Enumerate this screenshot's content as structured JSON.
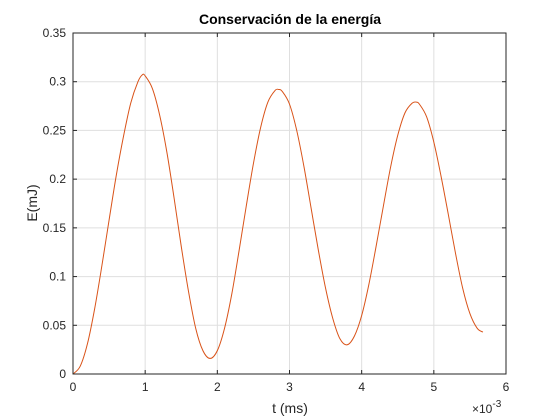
{
  "chart_data": {
    "type": "line",
    "title": "Conservación de la energía",
    "xlabel": "t (ms)",
    "ylabel": "E(mJ)",
    "x_multiplier_label": "×10",
    "x_multiplier_exponent": "-3",
    "xlim": [
      0,
      6
    ],
    "ylim": [
      0,
      0.35
    ],
    "grid": true,
    "legend": "none",
    "x_ticks": [
      0,
      1,
      2,
      3,
      4,
      5,
      6
    ],
    "x_tick_labels": [
      "0",
      "1",
      "2",
      "3",
      "4",
      "5",
      "6"
    ],
    "y_ticks": [
      0,
      0.05,
      0.1,
      0.15,
      0.2,
      0.25,
      0.3,
      0.35
    ],
    "y_tick_labels": [
      "0",
      "0.05",
      "0.1",
      "0.15",
      "0.2",
      "0.25",
      "0.3",
      "0.35"
    ],
    "series": [
      {
        "color": "#d95319",
        "x": [
          0,
          0.1,
          0.2,
          0.3,
          0.4,
          0.5,
          0.6,
          0.7,
          0.8,
          0.9,
          0.96,
          1.0,
          1.1,
          1.2,
          1.3,
          1.4,
          1.5,
          1.6,
          1.7,
          1.8,
          1.9,
          2.0,
          2.1,
          2.2,
          2.3,
          2.4,
          2.5,
          2.6,
          2.7,
          2.8,
          2.85,
          2.9,
          3.0,
          3.1,
          3.2,
          3.3,
          3.4,
          3.5,
          3.6,
          3.7,
          3.8,
          3.9,
          4.0,
          4.1,
          4.2,
          4.3,
          4.4,
          4.5,
          4.6,
          4.7,
          4.76,
          4.8,
          4.9,
          5.0,
          5.1,
          5.2,
          5.3,
          5.4,
          5.5,
          5.6,
          5.68
        ],
        "y": [
          0.0,
          0.008,
          0.031,
          0.067,
          0.111,
          0.158,
          0.204,
          0.244,
          0.278,
          0.3,
          0.307,
          0.306,
          0.293,
          0.266,
          0.228,
          0.181,
          0.131,
          0.085,
          0.047,
          0.024,
          0.016,
          0.024,
          0.047,
          0.082,
          0.126,
          0.172,
          0.216,
          0.253,
          0.279,
          0.291,
          0.292,
          0.29,
          0.277,
          0.25,
          0.213,
          0.17,
          0.127,
          0.088,
          0.057,
          0.036,
          0.03,
          0.039,
          0.06,
          0.092,
          0.131,
          0.172,
          0.212,
          0.245,
          0.268,
          0.278,
          0.279,
          0.277,
          0.264,
          0.238,
          0.203,
          0.164,
          0.124,
          0.088,
          0.062,
          0.047,
          0.043
        ]
      }
    ]
  }
}
